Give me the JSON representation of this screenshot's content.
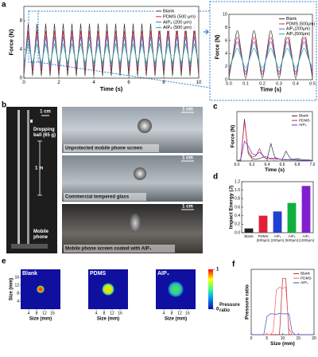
{
  "chart_data": [
    {
      "type": "line",
      "xlabel": "Time (s)",
      "ylabel": "Force (N)",
      "xlim": [
        0,
        10
      ],
      "ylim": [
        0,
        10
      ],
      "xticks": [
        0,
        2,
        4,
        6,
        8,
        10
      ],
      "yticks": [
        0,
        4,
        8
      ],
      "legend": "upper right",
      "x": [
        0,
        0.25,
        0.5,
        0.75,
        1,
        1.25,
        1.5,
        1.75,
        2,
        2.25,
        2.5,
        2.75,
        3,
        3.25,
        3.5,
        3.75,
        4,
        4.25,
        4.5,
        4.75,
        5,
        5.25,
        5.5,
        5.75,
        6,
        6.25,
        6.5,
        6.75,
        7,
        7.25,
        7.5,
        7.75,
        8,
        8.25,
        8.5,
        8.75,
        9,
        9.25,
        9.5,
        9.75,
        10
      ],
      "series": [
        {
          "name": "Blank",
          "color": "#333333",
          "values": [
            0.3,
            7.6,
            0.3,
            7.6,
            0.3,
            7.6,
            0.3,
            7.6,
            0.3,
            7.6,
            0.3,
            7.6,
            0.3,
            7.6,
            0.3,
            7.6,
            0.3,
            7.6,
            0.3,
            7.6,
            0.3,
            7.6,
            0.3,
            7.6,
            0.3,
            7.6,
            0.3,
            7.6,
            0.3,
            7.6,
            0.3,
            7.6,
            0.3,
            7.6,
            0.3,
            7.6,
            0.3,
            7.6,
            0.3,
            7.6,
            0.3
          ]
        },
        {
          "name": "PDMS (500 μm)",
          "color": "#e0203a",
          "values": [
            1,
            6.6,
            1,
            6.6,
            1,
            6.6,
            1,
            6.6,
            1,
            6.6,
            1,
            6.6,
            1,
            6.6,
            1,
            6.6,
            1,
            6.6,
            1,
            6.6,
            1,
            6.6,
            1,
            6.6,
            1,
            6.6,
            1,
            6.6,
            1,
            6.6,
            1,
            6.6,
            1,
            6.6,
            1,
            6.6,
            1,
            6.6,
            1,
            6.6,
            1
          ]
        },
        {
          "name": "AIP₄ (200 μm)",
          "color": "#3a6fd8",
          "values": [
            1.5,
            5.8,
            1.5,
            5.8,
            1.5,
            5.8,
            1.5,
            5.8,
            1.5,
            5.8,
            1.5,
            5.8,
            1.5,
            5.8,
            1.5,
            5.8,
            1.5,
            5.8,
            1.5,
            5.8,
            1.5,
            5.8,
            1.5,
            5.8,
            1.5,
            5.8,
            1.5,
            5.8,
            1.5,
            5.8,
            1.5,
            5.8,
            1.5,
            5.8,
            1.5,
            5.8,
            1.5,
            5.8,
            1.5,
            5.8,
            1.5
          ]
        },
        {
          "name": "AIP₄ (500 μm)",
          "color": "#2aa58a",
          "values": [
            2,
            4.8,
            2,
            4.8,
            2,
            4.8,
            2,
            4.8,
            2,
            4.8,
            2,
            4.8,
            2,
            4.8,
            2,
            4.8,
            2,
            4.8,
            2,
            4.8,
            2,
            4.8,
            2,
            4.8,
            2,
            4.8,
            2,
            4.8,
            2,
            4.8,
            2,
            4.8,
            2,
            4.8,
            2,
            4.8,
            2,
            4.8,
            2,
            4.8,
            2
          ]
        }
      ]
    },
    {
      "type": "line",
      "xlabel": "Time (s)",
      "ylabel": "Force (N)",
      "xlim": [
        0,
        0.5
      ],
      "ylim": [
        0,
        10
      ],
      "xticks": [
        {
          "value": 0,
          "label": "0.0"
        },
        0.1,
        0.2,
        0.3,
        0.4,
        0.5
      ],
      "yticks": [
        0,
        2,
        4,
        6,
        8,
        10
      ],
      "legend": "upper right",
      "x": [
        0,
        0.025,
        0.05,
        0.075,
        0.1,
        0.125,
        0.15,
        0.175,
        0.2,
        0.225,
        0.25,
        0.275,
        0.3,
        0.325,
        0.35,
        0.375,
        0.4,
        0.425,
        0.45,
        0.475,
        0.5
      ],
      "series": [
        {
          "name": "Blank",
          "color": "#333333",
          "values": [
            0.3,
            4,
            7.5,
            4,
            0.3,
            4,
            7.5,
            4,
            0.3,
            4,
            7.5,
            4,
            0.3,
            4,
            7.5,
            4,
            0.3,
            4,
            7.5,
            4,
            0.3
          ]
        },
        {
          "name": "PDMS (500μm)",
          "color": "#e0203a",
          "values": [
            0.8,
            3.7,
            6.5,
            3.7,
            0.8,
            3.7,
            6.5,
            3.7,
            0.8,
            3.7,
            6.5,
            3.7,
            0.8,
            3.7,
            6.5,
            3.7,
            0.8,
            3.7,
            6.5,
            3.7,
            0.8
          ]
        },
        {
          "name": "AIP₄(200μm)",
          "color": "#3a6fd8",
          "values": [
            1.2,
            3.5,
            5.8,
            3.5,
            1.2,
            3.5,
            5.8,
            3.5,
            1.2,
            3.5,
            5.8,
            3.5,
            1.2,
            3.5,
            5.8,
            3.5,
            1.2,
            3.5,
            5.8,
            3.5,
            1.2
          ]
        },
        {
          "name": "AIP₄(500μm)",
          "color": "#2aa58a",
          "values": [
            1.8,
            3.3,
            4.8,
            3.3,
            1.8,
            3.3,
            4.8,
            3.3,
            1.8,
            3.3,
            4.8,
            3.3,
            1.8,
            3.3,
            4.8,
            3.3,
            1.8,
            3.3,
            4.8,
            3.3,
            1.8
          ]
        }
      ]
    },
    {
      "type": "line",
      "xlabel": "Time (s)",
      "ylabel": "Force (N)",
      "xlim": [
        6,
        7
      ],
      "ylim": [
        0,
        10
      ],
      "xticks": [
        {
          "value": 6,
          "label": "6.0"
        },
        6.2,
        6.4,
        6.6,
        6.8,
        {
          "value": 7,
          "label": "7.0"
        }
      ],
      "legend": "upper right",
      "x": [
        6,
        6.05,
        6.1,
        6.15,
        6.2,
        6.25,
        6.3,
        6.35,
        6.4,
        6.45,
        6.5,
        6.55,
        6.6,
        6.65,
        6.7,
        6.75,
        6.8,
        6.85,
        6.9,
        6.95,
        7
      ],
      "series": [
        {
          "name": "Blank",
          "color": "#333333",
          "values": [
            0,
            0,
            8.5,
            1.5,
            0.5,
            0.3,
            0.5,
            0.8,
            0.4,
            3.5,
            0.8,
            0.4,
            0.3,
            2,
            0.6,
            0.3,
            0.5,
            0.3,
            0.2,
            0.2,
            0.1
          ]
        },
        {
          "name": "PDMS",
          "color": "#e0203a",
          "values": [
            0,
            0.2,
            8,
            2,
            0.8,
            1,
            2.5,
            0.8,
            0.5,
            0.4,
            0.3,
            0.4,
            0.3,
            0.2,
            0.3,
            0.2,
            0.2,
            0.1,
            0.1,
            0.1,
            0.1
          ]
        },
        {
          "name": "AIP₄",
          "color": "#4a3ad8",
          "values": [
            0,
            0.3,
            4,
            3,
            1.5,
            1.2,
            1.8,
            1,
            0.8,
            0.5,
            0.6,
            0.4,
            0.3,
            0.3,
            0.2,
            0.2,
            0.2,
            0.1,
            0.1,
            0.1,
            0.1
          ]
        }
      ]
    },
    {
      "type": "bar",
      "ylabel": "Impact Energy (J)",
      "categories": [
        "Blank",
        "PDMS (500μm)",
        "AIP₄ (200μm)",
        "AIP₄ (500μm)",
        "AIP₄ (1000μm)"
      ],
      "values": [
        0.1,
        0.4,
        0.5,
        0.7,
        1.1
      ],
      "colors": [
        "#222222",
        "#e0203a",
        "#2040d0",
        "#10b040",
        "#8020d0"
      ],
      "ylim": [
        0,
        1.2
      ],
      "yticks": [
        {
          "value": 0,
          "label": "0.0"
        },
        0.2,
        0.4,
        0.6,
        0.8,
        {
          "value": 1,
          "label": "1.0"
        },
        1.2
      ]
    },
    {
      "type": "line",
      "xlabel": "Size (mm)",
      "ylabel": "Pressure ratio",
      "xlim": [
        0,
        20
      ],
      "ylim": [
        0,
        1.1
      ],
      "xticks": [
        0,
        5,
        10,
        15,
        20
      ],
      "legend": "upper right",
      "x": [
        0,
        1,
        2,
        3,
        4,
        5,
        6,
        7,
        8,
        9,
        10,
        11,
        12,
        13,
        14,
        15,
        16,
        17,
        18,
        19,
        20
      ],
      "series": [
        {
          "name": "Blank",
          "color": "#c02020",
          "values": [
            0,
            0,
            0,
            0,
            0,
            0,
            0,
            0,
            0,
            0,
            0.95,
            0.95,
            0,
            0,
            0,
            0,
            0,
            0,
            0,
            0,
            0
          ]
        },
        {
          "name": "PDMS",
          "color": "#f06070",
          "values": [
            0,
            0,
            0,
            0,
            0,
            0,
            0,
            0.05,
            0.75,
            0.8,
            0.78,
            0.8,
            0.1,
            0,
            0,
            0,
            0,
            0,
            0,
            0,
            0
          ]
        },
        {
          "name": "AIP₄",
          "color": "#3050c0",
          "values": [
            0,
            0,
            0,
            0,
            0,
            0.3,
            0.35,
            0.35,
            0.34,
            0.36,
            0.35,
            0.35,
            0.35,
            0.05,
            0,
            0,
            0,
            0,
            0,
            0,
            0
          ]
        }
      ]
    },
    {
      "type": "heatmap",
      "titles": [
        "Blank",
        "PDMS",
        "AIP₄"
      ],
      "xlabel": "Size (mm)",
      "ylabel": "Size (mm)",
      "xlim": [
        0,
        20
      ],
      "ylim": [
        0,
        20
      ],
      "xticks": [
        4,
        8,
        12,
        16
      ],
      "yticks": [
        4,
        8,
        12,
        16
      ],
      "colorbar": {
        "label": "Pressure ratio",
        "lim": [
          0,
          1
        ],
        "ticks": [
          0,
          1
        ]
      }
    }
  ],
  "figure": {
    "panel_labels": [
      "a",
      "b",
      "c",
      "d",
      "e",
      "f"
    ],
    "scale_bars": [
      "1 cm",
      "1 cm",
      "1 cm",
      "1 cm"
    ],
    "captions": [
      "Unprotected mobile phone screen",
      "Commercial tempered glass",
      "Mobile phone screen coated with AIP₄"
    ],
    "ball_label": "Dropping ball (65 g)",
    "height_label": "1 m",
    "phone_label": "Mobile phone"
  }
}
